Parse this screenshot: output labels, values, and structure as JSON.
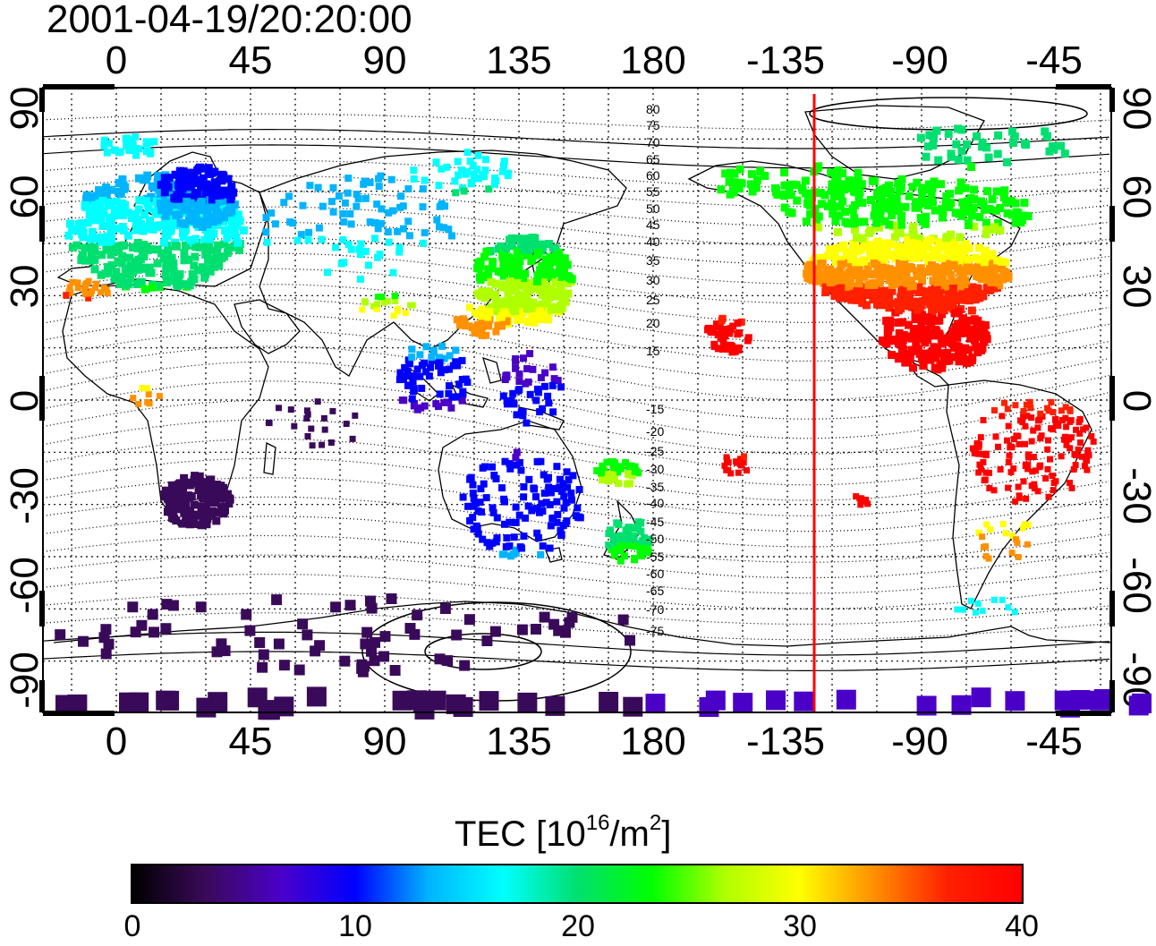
{
  "title": "2001-04-19/20:20:00",
  "axes": {
    "top_ticks": [
      "0",
      "45",
      "90",
      "135",
      "180",
      "-135",
      "-90",
      "-45"
    ],
    "bottom_ticks": [
      "0",
      "45",
      "90",
      "135",
      "180",
      "-135",
      "-90",
      "-45"
    ],
    "left_ticks": [
      "90",
      "60",
      "30",
      "0",
      "-30",
      "-60",
      "-90"
    ],
    "right_ticks": [
      "90",
      "60",
      "30",
      "0",
      "-30",
      "-60",
      "-90"
    ]
  },
  "contour_labels": [
    "80",
    "75",
    "70",
    "65",
    "60",
    "55",
    "50",
    "45",
    "40",
    "35",
    "30",
    "25",
    "20",
    "15",
    "-15",
    "-20",
    "-25",
    "-30",
    "-35",
    "-40",
    "-45",
    "-50",
    "-55",
    "-60",
    "-65",
    "-70",
    "-75"
  ],
  "colorbar": {
    "title_main": "TEC  [10",
    "title_exp": "16",
    "title_mid": "/m",
    "title_exp2": "2",
    "title_end": "]",
    "min": 0,
    "max": 40,
    "tick_labels": [
      "0",
      "10",
      "20",
      "30",
      "40"
    ],
    "colors": [
      "#000000",
      "#3a0a5a",
      "#4b00c8",
      "#0000ff",
      "#00b4ff",
      "#00ffff",
      "#00e070",
      "#00ff00",
      "#b0ff00",
      "#ffff00",
      "#ff9000",
      "#ff2000",
      "#ff0000"
    ]
  },
  "meridian_marker": {
    "longitude": -126,
    "color": "#ff0000"
  }
}
